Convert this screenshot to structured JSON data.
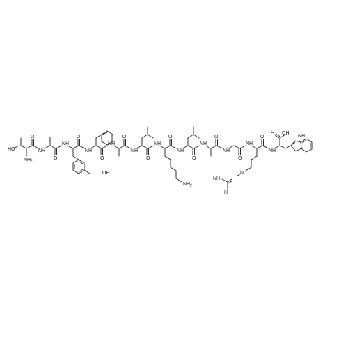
{
  "structure": {
    "labels": {
      "ho": "HO",
      "nh2_thr": "NH",
      "nh2_thr_sub": "2",
      "nh": "NH",
      "oh_tyr": "OH",
      "nh2_lys": "NH",
      "nh2_lys_sub": "2",
      "nh2_arg": "H",
      "nh2_arg_n": "N",
      "nh2_arg_sub": "2",
      "n_arg": "N",
      "nh_arg": "NH",
      "cooh": "OH",
      "o": "O",
      "nh_trp": "NH"
    }
  }
}
